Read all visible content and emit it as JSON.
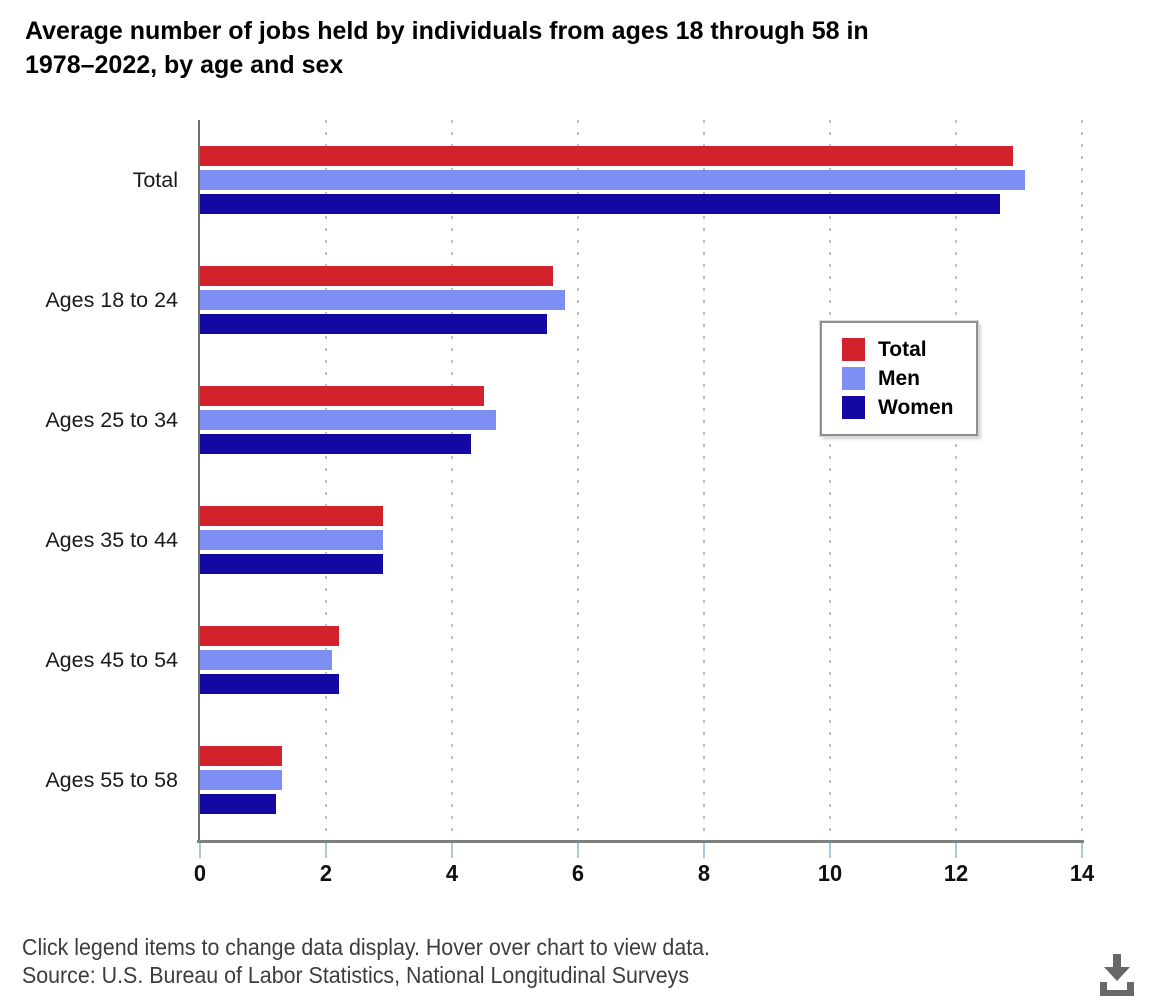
{
  "title": {
    "line1": "Average number of jobs held by individuals from ages 18 through 58 in",
    "line2": "1978–2022, by age and sex"
  },
  "chart_data": {
    "type": "bar",
    "orientation": "horizontal",
    "title": "Average number of jobs held by individuals from ages 18 through 58 in 1978–2022, by age and sex",
    "categories": [
      "Total",
      "Ages 18 to 24",
      "Ages 25 to 34",
      "Ages 35 to 44",
      "Ages 45 to 54",
      "Ages 55 to 58"
    ],
    "series": [
      {
        "name": "Total",
        "color": "#D2232C",
        "values": [
          12.9,
          5.6,
          4.5,
          2.9,
          2.2,
          1.3
        ]
      },
      {
        "name": "Men",
        "color": "#7E8FF4",
        "values": [
          13.1,
          5.8,
          4.7,
          2.9,
          2.1,
          1.3
        ]
      },
      {
        "name": "Women",
        "color": "#1408A3",
        "values": [
          12.7,
          5.5,
          4.3,
          2.9,
          2.2,
          1.2
        ]
      }
    ],
    "xlim": [
      0,
      14
    ],
    "x_ticks": [
      0,
      2,
      4,
      6,
      8,
      10,
      12,
      14
    ],
    "grid": "vertical-dashed",
    "legend_position": "inside-right"
  },
  "footer": {
    "note": "Click legend items to change data display. Hover over chart to view data.",
    "source": "Source: U.S. Bureau of Labor Statistics, National Longitudinal Surveys"
  },
  "icons": {
    "download": "download-icon"
  },
  "colors": {
    "axis": "#7f7f7f",
    "gridline": "#c0c0c0",
    "tick": "#abc8d9",
    "footer_text": "#3d3d3d",
    "download_icon": "#686868"
  }
}
